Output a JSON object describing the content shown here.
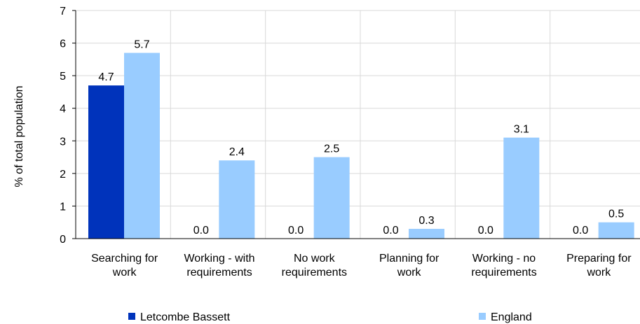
{
  "chart_data": {
    "type": "bar",
    "ylabel": "% of total population",
    "ylim": [
      0,
      7
    ],
    "yticks": [
      0,
      1,
      2,
      3,
      4,
      5,
      6,
      7
    ],
    "grid": true,
    "legend_position": "bottom",
    "categories": [
      [
        "Searching for",
        "work"
      ],
      [
        "Working - with",
        "requirements"
      ],
      [
        "No work",
        "requirements"
      ],
      [
        "Planning for",
        "work"
      ],
      [
        "Working - no",
        "requirements"
      ],
      [
        "Preparing for",
        "work"
      ]
    ],
    "series": [
      {
        "name": "Letcombe Bassett",
        "color": "#0033BB",
        "values": [
          4.7,
          0.0,
          0.0,
          0.0,
          0.0,
          0.0
        ],
        "labels": [
          "4.7",
          "0.0",
          "0.0",
          "0.0",
          "0.0",
          "0.0"
        ]
      },
      {
        "name": "England",
        "color": "#99CCFF",
        "values": [
          5.7,
          2.4,
          2.5,
          0.3,
          3.1,
          0.5
        ],
        "labels": [
          "5.7",
          "2.4",
          "2.5",
          "0.3",
          "3.1",
          "0.5"
        ]
      }
    ]
  }
}
